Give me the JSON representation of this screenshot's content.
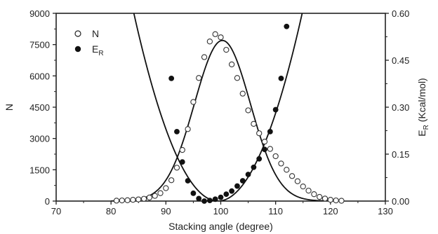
{
  "chart_data": {
    "type": "scatter",
    "title": "",
    "xlabel": "Stacking angle (degree)",
    "ylabel_left": "N",
    "ylabel_right_main": "E",
    "ylabel_right_sub": "R",
    "ylabel_right_tail": " (Kcal/mol)",
    "xlim": [
      70,
      130
    ],
    "ylim_left": [
      0,
      9000
    ],
    "ylim_right": [
      0,
      0.6
    ],
    "x_ticks": [
      "70",
      "80",
      "90",
      "100",
      "110",
      "120",
      "130"
    ],
    "y_left_ticks": [
      "0",
      "1500",
      "3000",
      "4500",
      "6000",
      "7500",
      "9000"
    ],
    "y_right_ticks": [
      "0.00",
      "0.15",
      "0.30",
      "0.45",
      "0.60"
    ],
    "legend_placement": "top-left",
    "grid": false,
    "series": [
      {
        "name": "N",
        "marker": "open-circle",
        "axis": "left",
        "points": [
          [
            81,
            20
          ],
          [
            82,
            30
          ],
          [
            83,
            40
          ],
          [
            84,
            60
          ],
          [
            85,
            80
          ],
          [
            86,
            110
          ],
          [
            87,
            170
          ],
          [
            88,
            250
          ],
          [
            89,
            380
          ],
          [
            90,
            620
          ],
          [
            91,
            1000
          ],
          [
            92,
            1600
          ],
          [
            93,
            2450
          ],
          [
            94,
            3450
          ],
          [
            95,
            4750
          ],
          [
            96,
            5900
          ],
          [
            97,
            6900
          ],
          [
            98,
            7650
          ],
          [
            99,
            8000
          ],
          [
            100,
            7850
          ],
          [
            101,
            7250
          ],
          [
            102,
            6550
          ],
          [
            103,
            5900
          ],
          [
            104,
            5150
          ],
          [
            105,
            4350
          ],
          [
            106,
            3700
          ],
          [
            107,
            3250
          ],
          [
            108,
            2850
          ],
          [
            109,
            2500
          ],
          [
            110,
            2150
          ],
          [
            111,
            1800
          ],
          [
            112,
            1500
          ],
          [
            113,
            1200
          ],
          [
            114,
            950
          ],
          [
            115,
            700
          ],
          [
            116,
            500
          ],
          [
            117,
            330
          ],
          [
            118,
            200
          ],
          [
            119,
            120
          ],
          [
            120,
            60
          ],
          [
            121,
            30
          ],
          [
            122,
            15
          ]
        ]
      },
      {
        "name": "E",
        "name_sub": "R",
        "marker": "filled-circle",
        "axis": "right",
        "points": [
          [
            91,
            0.392
          ],
          [
            92,
            0.222
          ],
          [
            93,
            0.125
          ],
          [
            94,
            0.065
          ],
          [
            95,
            0.025
          ],
          [
            96,
            0.008
          ],
          [
            97,
            0.0
          ],
          [
            98,
            0.002
          ],
          [
            99,
            0.006
          ],
          [
            100,
            0.012
          ],
          [
            101,
            0.022
          ],
          [
            102,
            0.032
          ],
          [
            103,
            0.048
          ],
          [
            104,
            0.065
          ],
          [
            105,
            0.085
          ],
          [
            106,
            0.108
          ],
          [
            107,
            0.135
          ],
          [
            108,
            0.165
          ],
          [
            109,
            0.222
          ],
          [
            110,
            0.292
          ],
          [
            111,
            0.392
          ],
          [
            112,
            0.558
          ]
        ]
      }
    ],
    "fit_curves": [
      {
        "for": "N",
        "shape": "gaussian",
        "center": 100.3,
        "peak": 7700,
        "sigma": 5.1
      },
      {
        "for": "E_R",
        "shape": "parabola",
        "vertex_x": 99.5,
        "vertex_y": 0.0,
        "coef": 0.00255
      }
    ]
  }
}
